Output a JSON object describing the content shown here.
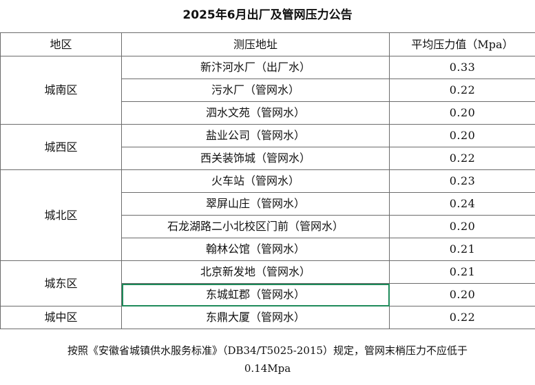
{
  "title": "2025年6月出厂及管网压力公告",
  "table": {
    "headers": [
      "地区",
      "测压地址",
      "平均压力值（Mpa）"
    ],
    "districts": [
      {
        "name": "城南区",
        "rows": [
          {
            "address": "新汴河水厂（出厂水）",
            "value": "0.33"
          },
          {
            "address": "污水厂（管网水）",
            "value": "0.22"
          },
          {
            "address": "泗水文苑（管网水）",
            "value": "0.20"
          }
        ]
      },
      {
        "name": "城西区",
        "rows": [
          {
            "address": "盐业公司（管网水）",
            "value": "0.20"
          },
          {
            "address": "西关装饰城（管网水）",
            "value": "0.22"
          }
        ]
      },
      {
        "name": "城北区",
        "rows": [
          {
            "address": "火车站（管网水）",
            "value": "0.23"
          },
          {
            "address": "翠屏山庄（管网水）",
            "value": "0.24"
          },
          {
            "address": "石龙湖路二小北校区门前（管网水）",
            "value": "0.20"
          },
          {
            "address": "翰林公馆（管网水）",
            "value": "0.21"
          }
        ]
      },
      {
        "name": "城东区",
        "rows": [
          {
            "address": "北京新发地（管网水）",
            "value": "0.21"
          },
          {
            "address": "东城虹郡（管网水）",
            "value": "0.20"
          }
        ]
      },
      {
        "name": "城中区",
        "rows": [
          {
            "address": "东鼎大厦（管网水）",
            "value": "0.22"
          }
        ]
      }
    ]
  },
  "footnote": {
    "line1": "按照《安徽省城镇供水服务标准》（DB34/T5025-2015）规定，管网末梢压力不应低于",
    "line2": "0.14Mpa"
  }
}
